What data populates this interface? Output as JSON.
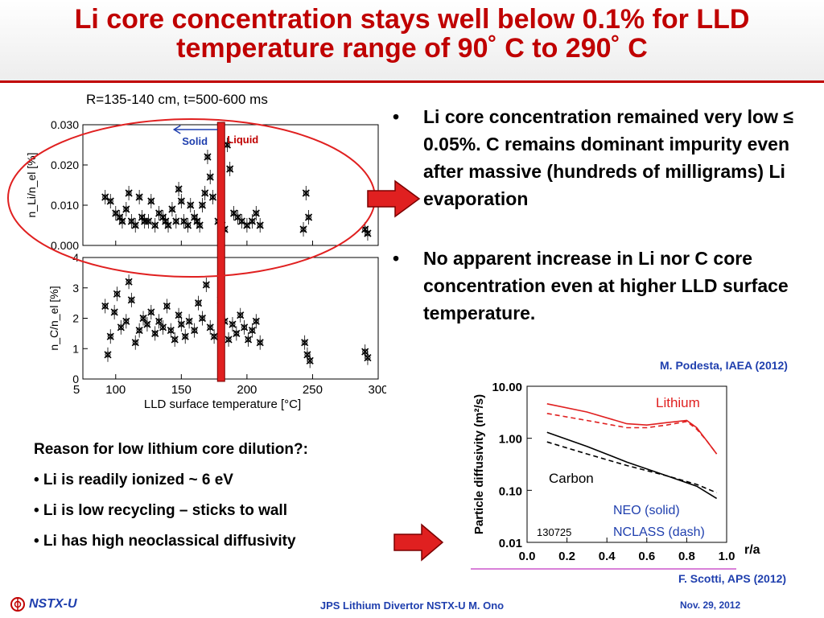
{
  "title": {
    "line1": "Li core concentration stays well below 0.1% for LLD",
    "line2": "temperature range of 90˚ C to 290˚ C"
  },
  "left_figure": {
    "caption": "R=135-140 cm, t=500-600 ms",
    "marker_solid": "Solid",
    "marker_liquid": "Liquid",
    "top_ylabel": "n_Li/n_el [%]",
    "bottom_ylabel": "n_C/n_el [%]",
    "xlabel": "LLD surface temperature [°C]",
    "top_yticks": [
      "0.030",
      "0.020",
      "0.010",
      "0.000"
    ],
    "bottom_yticks": [
      "4",
      "3",
      "2",
      "1",
      "0"
    ],
    "xticks": [
      "5",
      "100",
      "150",
      "200",
      "250",
      "300"
    ]
  },
  "bullets": [
    "Li core concentration remained very low ≤ 0.05%.  C remains dominant impurity even after massive (hundreds of milligrams) Li evaporation",
    "No apparent increase in Li nor C core concentration even at higher LLD surface temperature."
  ],
  "bullet_symbol": "•",
  "citation_top": "M. Podesta, IAEA (2012)",
  "citation_bottom": "F. Scotti, APS (2012)",
  "reason": {
    "heading": "Reason for low lithium core dilution?:",
    "items": [
      "• Li is readily ionized ~ 6 eV",
      "• Li is low recycling – sticks to wall",
      "• Li has high neoclassical diffusivity"
    ]
  },
  "right_chart": {
    "ylabel": "Particle diffusivity (m²/s)",
    "yticks": [
      "10.00",
      "1.00",
      "0.10",
      "0.01"
    ],
    "xticks": [
      "0.0",
      "0.2",
      "0.4",
      "0.6",
      "0.8",
      "1.0"
    ],
    "xlabel": "r/a",
    "label_lithium": "Lithium",
    "label_carbon": "Carbon",
    "label_neo": "NEO (solid)",
    "label_nclass": "NCLASS (dash)",
    "shot": "130725"
  },
  "chart_data": [
    {
      "type": "scatter",
      "title": "R=135-140 cm, t=500-600 ms",
      "xlabel": "LLD surface temperature [°C]",
      "ylabel": "n_Li/n_el [%]",
      "xlim": [
        75,
        300
      ],
      "ylim": [
        0,
        0.03
      ],
      "series": [
        {
          "values": [
            [
              92,
              0.012
            ],
            [
              96,
              0.011
            ],
            [
              100,
              0.008
            ],
            [
              103,
              0.007
            ],
            [
              105,
              0.006
            ],
            [
              108,
              0.009
            ],
            [
              110,
              0.013
            ],
            [
              112,
              0.006
            ],
            [
              115,
              0.005
            ],
            [
              118,
              0.012
            ],
            [
              120,
              0.007
            ],
            [
              122,
              0.006
            ],
            [
              125,
              0.006
            ],
            [
              127,
              0.011
            ],
            [
              130,
              0.005
            ],
            [
              133,
              0.008
            ],
            [
              136,
              0.007
            ],
            [
              138,
              0.006
            ],
            [
              140,
              0.005
            ],
            [
              143,
              0.009
            ],
            [
              146,
              0.006
            ],
            [
              148,
              0.014
            ],
            [
              150,
              0.011
            ],
            [
              152,
              0.006
            ],
            [
              155,
              0.005
            ],
            [
              157,
              0.01
            ],
            [
              160,
              0.007
            ],
            [
              162,
              0.006
            ],
            [
              164,
              0.005
            ],
            [
              166,
              0.01
            ],
            [
              168,
              0.013
            ],
            [
              170,
              0.022
            ],
            [
              172,
              0.017
            ],
            [
              174,
              0.012
            ],
            [
              178,
              0.006
            ],
            [
              181,
              0.005
            ],
            [
              183,
              0.004
            ],
            [
              185,
              0.025
            ],
            [
              187,
              0.019
            ],
            [
              190,
              0.008
            ],
            [
              193,
              0.007
            ],
            [
              196,
              0.006
            ],
            [
              200,
              0.005
            ],
            [
              204,
              0.006
            ],
            [
              207,
              0.008
            ],
            [
              210,
              0.005
            ],
            [
              243,
              0.004
            ],
            [
              245,
              0.013
            ],
            [
              247,
              0.007
            ],
            [
              290,
              0.004
            ],
            [
              292,
              0.003
            ]
          ]
        }
      ]
    },
    {
      "type": "scatter",
      "xlabel": "LLD surface temperature [°C]",
      "ylabel": "n_C/n_el [%]",
      "xlim": [
        75,
        300
      ],
      "ylim": [
        0,
        4
      ],
      "series": [
        {
          "values": [
            [
              92,
              2.4
            ],
            [
              94,
              0.8
            ],
            [
              96,
              1.4
            ],
            [
              99,
              2.2
            ],
            [
              101,
              2.8
            ],
            [
              104,
              1.7
            ],
            [
              108,
              1.9
            ],
            [
              110,
              3.2
            ],
            [
              112,
              2.6
            ],
            [
              115,
              1.2
            ],
            [
              118,
              1.6
            ],
            [
              121,
              2.0
            ],
            [
              124,
              1.8
            ],
            [
              127,
              2.2
            ],
            [
              130,
              1.5
            ],
            [
              133,
              1.9
            ],
            [
              136,
              1.7
            ],
            [
              139,
              2.4
            ],
            [
              142,
              1.6
            ],
            [
              145,
              1.3
            ],
            [
              148,
              2.1
            ],
            [
              150,
              1.8
            ],
            [
              153,
              1.4
            ],
            [
              156,
              1.9
            ],
            [
              160,
              1.6
            ],
            [
              163,
              2.5
            ],
            [
              166,
              2.0
            ],
            [
              169,
              3.1
            ],
            [
              172,
              1.7
            ],
            [
              175,
              1.4
            ],
            [
              180,
              2.6
            ],
            [
              183,
              1.9
            ],
            [
              186,
              1.3
            ],
            [
              189,
              1.8
            ],
            [
              192,
              1.5
            ],
            [
              195,
              2.1
            ],
            [
              198,
              1.7
            ],
            [
              201,
              1.3
            ],
            [
              204,
              1.6
            ],
            [
              207,
              1.9
            ],
            [
              210,
              1.2
            ],
            [
              244,
              1.2
            ],
            [
              246,
              0.8
            ],
            [
              248,
              0.6
            ],
            [
              290,
              0.9
            ],
            [
              292,
              0.7
            ]
          ]
        }
      ]
    },
    {
      "type": "line",
      "xlabel": "r/a",
      "ylabel": "Particle diffusivity (m²/s)",
      "xlim": [
        0,
        1.0
      ],
      "ylim": [
        0.01,
        10
      ],
      "yscale": "log",
      "series": [
        {
          "name": "Lithium NEO (solid)",
          "style": "solid",
          "color": "#e02020",
          "x": [
            0.1,
            0.3,
            0.5,
            0.6,
            0.7,
            0.8,
            0.85,
            0.9,
            0.95
          ],
          "values": [
            4.6,
            3.2,
            1.9,
            1.8,
            2.0,
            2.2,
            1.6,
            0.9,
            0.5
          ]
        },
        {
          "name": "Lithium NCLASS (dash)",
          "style": "dash",
          "color": "#e02020",
          "x": [
            0.1,
            0.3,
            0.5,
            0.6,
            0.7,
            0.8,
            0.85,
            0.9,
            0.95
          ],
          "values": [
            3.0,
            2.2,
            1.6,
            1.6,
            1.8,
            2.1,
            1.5,
            0.9,
            0.5
          ]
        },
        {
          "name": "Carbon NEO (solid)",
          "style": "solid",
          "color": "#000000",
          "x": [
            0.1,
            0.3,
            0.5,
            0.7,
            0.85,
            0.95
          ],
          "values": [
            1.3,
            0.7,
            0.35,
            0.19,
            0.12,
            0.07
          ]
        },
        {
          "name": "Carbon NCLASS (dash)",
          "style": "dash",
          "color": "#000000",
          "x": [
            0.1,
            0.3,
            0.5,
            0.7,
            0.85,
            0.95
          ],
          "values": [
            0.85,
            0.5,
            0.3,
            0.19,
            0.13,
            0.09
          ]
        }
      ]
    }
  ],
  "footer": {
    "logo_text": "NSTX-U",
    "center": "JPS Lithium Divertor NSTX-U M. Ono",
    "date": "Nov. 29, 2012"
  },
  "colors": {
    "title": "#c00000",
    "footer_blue": "#1f3fae",
    "arrow": "#e02020",
    "ellipse": "#e02020"
  }
}
